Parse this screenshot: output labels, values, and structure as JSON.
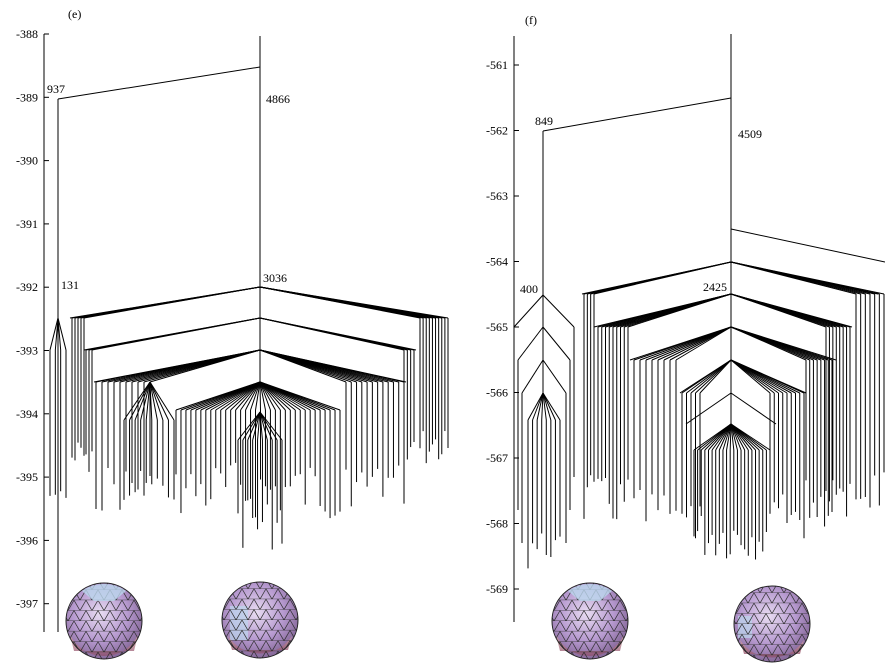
{
  "panels": [
    {
      "id": "e",
      "label": "(e)",
      "ticks": [
        "-388",
        "-389",
        "-390",
        "-391",
        "-392",
        "-393",
        "-394",
        "-395",
        "-396",
        "-397"
      ],
      "node_labels": [
        "937",
        "4866",
        "131",
        "3036"
      ],
      "cluster_images": [
        "cluster-image-left",
        "cluster-image-right"
      ]
    },
    {
      "id": "f",
      "label": "(f)",
      "ticks": [
        "-561",
        "-562",
        "-563",
        "-564",
        "-565",
        "-566",
        "-567",
        "-568",
        "-569"
      ],
      "node_labels": [
        "849",
        "4509",
        "400",
        "2425"
      ],
      "cluster_images": [
        "cluster-image-left",
        "cluster-image-right"
      ]
    }
  ],
  "colors": {
    "cluster_face": "#c7a9d6",
    "cluster_face_light": "#bcd7ee",
    "cluster_face_warm": "#e3b48f",
    "cluster_face_dark": "#9a6f9a"
  }
}
